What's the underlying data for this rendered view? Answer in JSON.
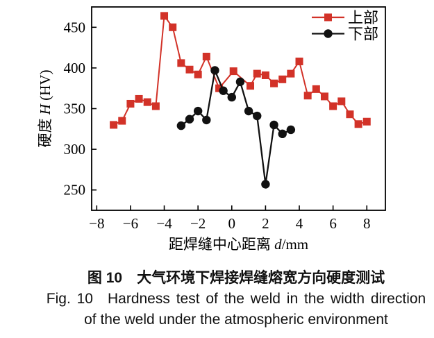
{
  "caption": {
    "line_cn": "图 10　大气环境下焊接焊缝熔宽方向硬度测试",
    "line_en_1": "Fig. 10　Hardness test of the weld in the width direction",
    "line_en_2": "of the weld under the atmospheric environment"
  },
  "chart_data": {
    "type": "line",
    "title": "",
    "xlabel": "距焊缝中心距离 d/mm",
    "ylabel": "硬度 H (HV)",
    "xlabel_parts": [
      {
        "text": "距焊缝中心距离 "
      },
      {
        "text": "d",
        "italic": true
      },
      {
        "text": "/mm"
      }
    ],
    "ylabel_parts": [
      {
        "text": "硬度 "
      },
      {
        "text": "H",
        "italic": true
      },
      {
        "text": " (HV)"
      }
    ],
    "xlim": [
      -8.3,
      9.1
    ],
    "ylim": [
      225,
      475
    ],
    "x_ticks": [
      -8,
      -6,
      -4,
      -2,
      0,
      2,
      4,
      6,
      8
    ],
    "y_ticks": [
      250,
      300,
      350,
      400,
      450
    ],
    "grid": false,
    "legend_position": "top-right",
    "axis_color": "#000000",
    "series": [
      {
        "name": "上部",
        "marker": "square",
        "color": "#d23228",
        "x": [
          -7,
          -6.5,
          -6,
          -5.5,
          -5,
          -4.5,
          -4,
          -3.5,
          -3,
          -2.5,
          -2,
          -1.5,
          -0.75,
          0.1,
          1.1,
          1.5,
          2,
          2.5,
          3,
          3.5,
          4,
          4.5,
          5,
          5.5,
          6,
          6.5,
          7,
          7.5,
          8
        ],
        "values": [
          330,
          335,
          356,
          362,
          358,
          353,
          464,
          450,
          406,
          398,
          392,
          414,
          375,
          396,
          378,
          393,
          391,
          381,
          386,
          393,
          408,
          366,
          374,
          365,
          353,
          359,
          343,
          331,
          334
        ]
      },
      {
        "name": "下部",
        "marker": "circle",
        "color": "#111111",
        "x": [
          -3,
          -2.5,
          -2,
          -1.5,
          -1,
          -0.5,
          0,
          0.5,
          1,
          1.5,
          2,
          2.5,
          3,
          3.5
        ],
        "values": [
          329,
          337,
          347,
          336,
          397,
          372,
          364,
          383,
          347,
          341,
          257,
          330,
          319,
          324
        ]
      }
    ]
  }
}
